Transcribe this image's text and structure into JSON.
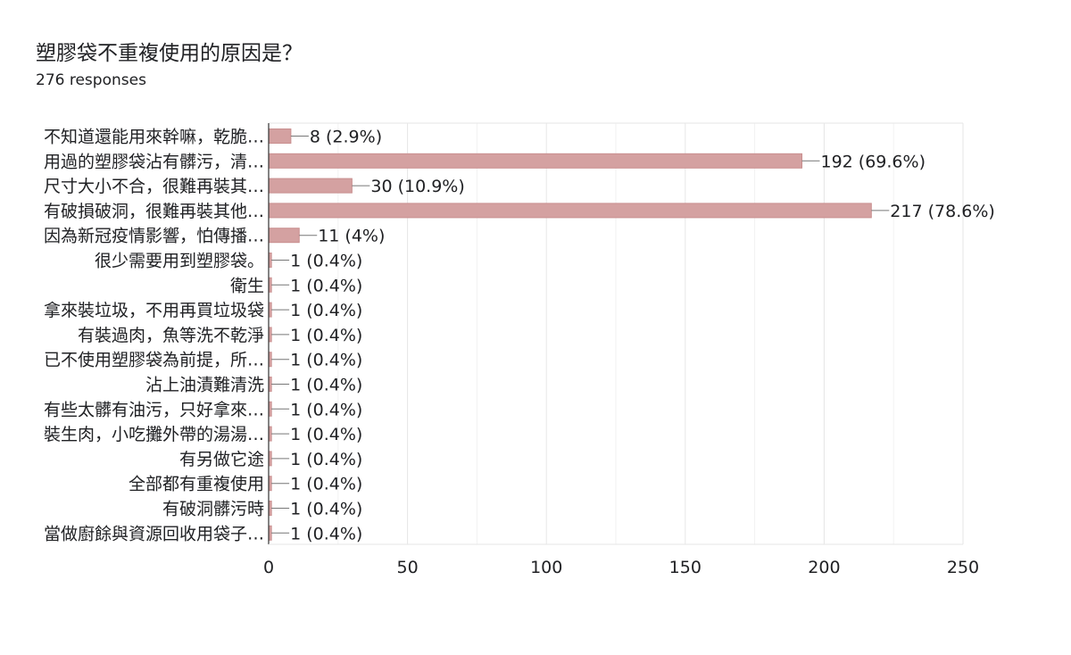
{
  "header": {
    "title": "塑膠袋不重複使用的原因是？",
    "responses": "276 responses"
  },
  "colors": {
    "bar": "#d4a1a1",
    "bar_stroke": "#c98f8f",
    "grid": "#e6e6e6",
    "axis": "#333333",
    "text": "#202124"
  },
  "chart_data": {
    "type": "bar",
    "orientation": "horizontal",
    "categories": [
      "不知道還能用來幹嘛，乾脆…",
      "用過的塑膠袋沾有髒污，清…",
      "尺寸大小不合，很難再裝其…",
      "有破損破洞，很難再裝其他…",
      "因為新冠疫情影響，怕傳播…",
      "很少需要用到塑膠袋。",
      "衛生",
      "拿來裝垃圾，不用再買垃圾袋",
      "有裝過肉，魚等洗不乾淨",
      "已不使用塑膠袋為前提，所…",
      "沾上油漬難清洗",
      "有些太髒有油污，只好拿來…",
      "裝生肉，小吃攤外帶的湯湯…",
      "有另做它途",
      "全部都有重複使用",
      "有破洞髒污時",
      "當做廚餘與資源回收用袋子…"
    ],
    "values": [
      8,
      192,
      30,
      217,
      11,
      1,
      1,
      1,
      1,
      1,
      1,
      1,
      1,
      1,
      1,
      1,
      1
    ],
    "data_labels": [
      "8 (2.9%)",
      "192 (69.6%)",
      "30 (10.9%)",
      "217 (78.6%)",
      "11 (4%)",
      "1 (0.4%)",
      "1 (0.4%)",
      "1 (0.4%)",
      "1 (0.4%)",
      "1 (0.4%)",
      "1 (0.4%)",
      "1 (0.4%)",
      "1 (0.4%)",
      "1 (0.4%)",
      "1 (0.4%)",
      "1 (0.4%)",
      "1 (0.4%)"
    ],
    "xlim": [
      0,
      250
    ],
    "xticks": [
      0,
      50,
      100,
      150,
      200,
      250
    ],
    "grid": true,
    "legend": "none"
  }
}
